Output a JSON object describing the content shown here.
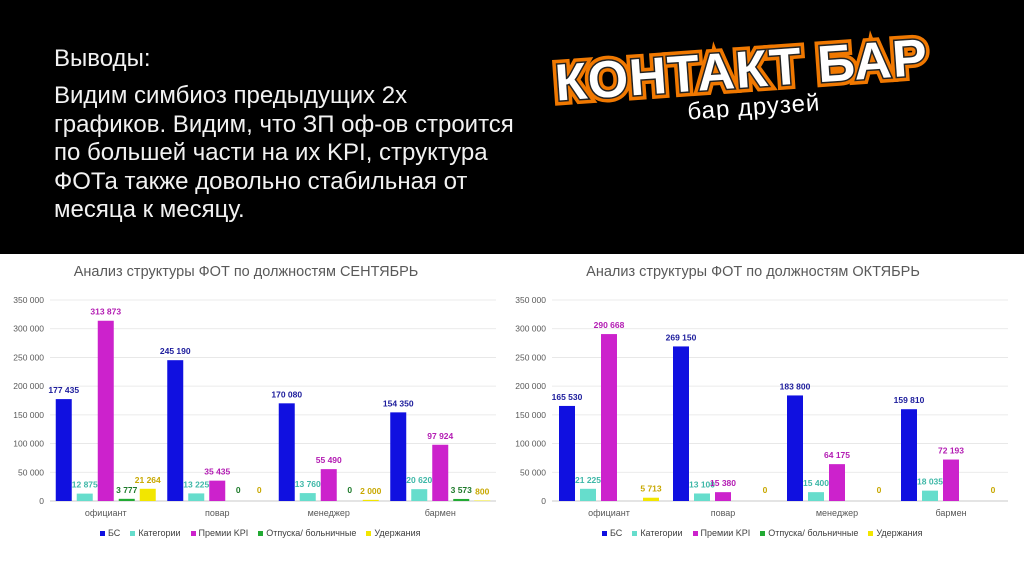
{
  "slide": {
    "heading": "Выводы:",
    "body": "Видим симбиоз предыдущих 2х графиков. Видим, что ЗП оф-ов строится по большей части на их KPI, структура ФОТа также довольно стабильная от месяца к месяцу."
  },
  "logo": {
    "name": "КОНТАКТ БАР",
    "tagline": "бар друзей"
  },
  "colors": {
    "БС": "#1010e0",
    "Категории": "#66ddcc",
    "Премии KPI": "#cc22cc",
    "Отпуска/ больничные": "#22aa33",
    "Удержания": "#f2e600"
  },
  "label_colors": {
    "БС": "#1c1c9c",
    "Категории": "#3fb8a8",
    "Премии KPI": "#b31cb3",
    "Отпуска/ больничные": "#1d7a2a",
    "Удержания": "#c8a800"
  },
  "chart_data": [
    {
      "type": "bar",
      "title": "Анализ структуры ФОТ по должностям СЕНТЯБРЬ",
      "categories": [
        "официант",
        "повар",
        "менеджер",
        "бармен"
      ],
      "ylim": [
        0,
        350000
      ],
      "yticks": [
        "0",
        "50 000",
        "100 000",
        "150 000",
        "200 000",
        "250 000",
        "300 000",
        "350 000"
      ],
      "legend_position": "bottom",
      "series": [
        {
          "name": "БС",
          "values": [
            177435,
            245190,
            170080,
            154350
          ],
          "labels": [
            "177 435",
            "245 190",
            "170 080",
            "154 350"
          ]
        },
        {
          "name": "Категории",
          "values": [
            12875,
            13225,
            13760,
            20620
          ],
          "labels": [
            "12 875",
            "13 225",
            "13 760",
            "20 620"
          ]
        },
        {
          "name": "Премии KPI",
          "values": [
            313873,
            35435,
            55490,
            97924
          ],
          "labels": [
            "313 873",
            "35 435",
            "55 490",
            "97 924"
          ]
        },
        {
          "name": "Отпуска/ больничные",
          "values": [
            3777,
            0,
            0,
            3573
          ],
          "labels": [
            "3 777",
            "0",
            "0",
            "3 573"
          ]
        },
        {
          "name": "Удержания",
          "values": [
            21264,
            0,
            2000,
            800
          ],
          "labels": [
            "21 264",
            "0",
            "2 000",
            "800"
          ]
        }
      ]
    },
    {
      "type": "bar",
      "title": "Анализ структуры ФОТ по должностям ОКТЯБРЬ",
      "categories": [
        "официант",
        "повар",
        "менеджер",
        "бармен"
      ],
      "ylim": [
        0,
        350000
      ],
      "yticks": [
        "0",
        "50 000",
        "100 000",
        "150 000",
        "200 000",
        "250 000",
        "300 000",
        "350 000"
      ],
      "legend_position": "bottom",
      "series": [
        {
          "name": "БС",
          "values": [
            165530,
            269150,
            183800,
            159810
          ],
          "labels": [
            "165 530",
            "269 150",
            "183 800",
            "159 810"
          ]
        },
        {
          "name": "Категории",
          "values": [
            21225,
            13100,
            15400,
            18035
          ],
          "labels": [
            "21 225",
            "13 100",
            "15 400",
            "18 035"
          ]
        },
        {
          "name": "Премии KPI",
          "values": [
            290668,
            15380,
            64175,
            72193
          ],
          "labels": [
            "290 668",
            "15 380",
            "64 175",
            "72 193"
          ]
        },
        {
          "name": "Отпуска/ больничные",
          "values": [
            null,
            null,
            null,
            null
          ],
          "labels": [
            "",
            "",
            "",
            ""
          ]
        },
        {
          "name": "Удержания",
          "values": [
            5713,
            0,
            0,
            0
          ],
          "labels": [
            "5 713",
            "0",
            "0",
            "0"
          ]
        }
      ]
    }
  ]
}
